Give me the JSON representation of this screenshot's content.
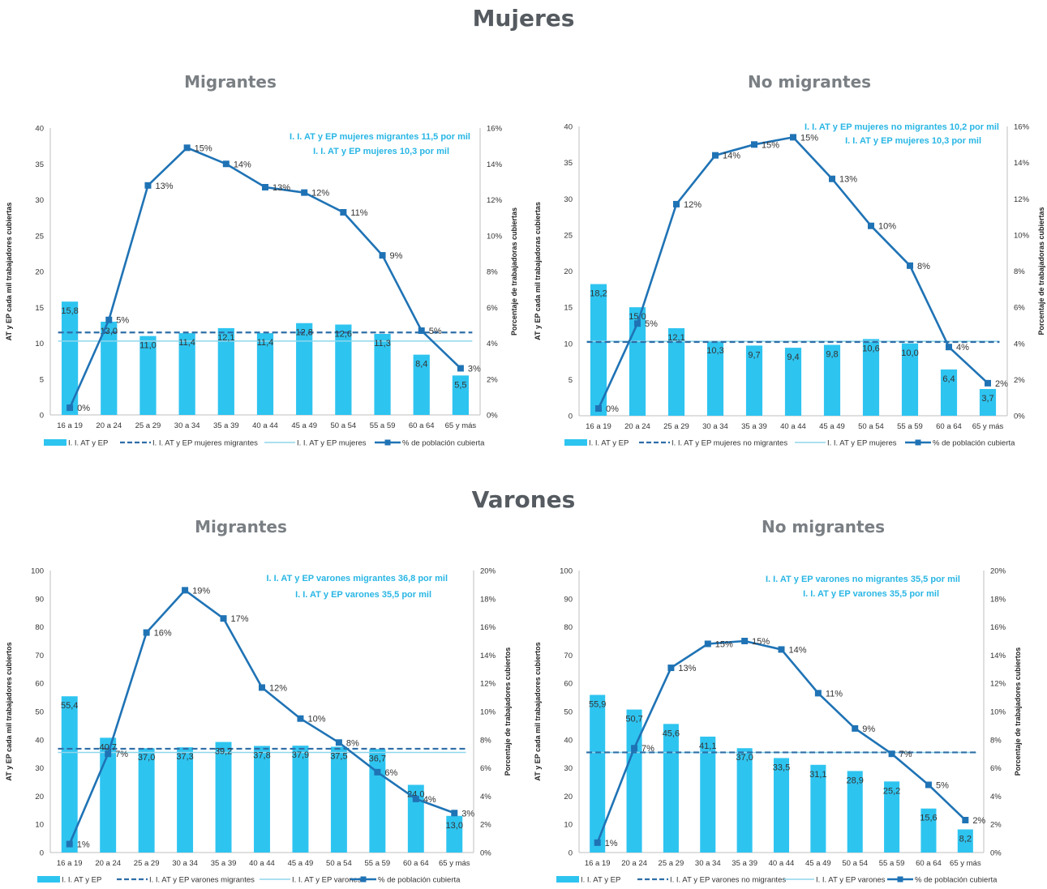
{
  "sections": [
    {
      "title": "Mujeres"
    },
    {
      "title": "Varones"
    }
  ],
  "colors": {
    "bars": "#2ec4f0",
    "pct_line": "#1f73b5",
    "ref_dashed": "#2e6ea7",
    "ref_light": "#8fd6ec",
    "annotation": "#29b6e4"
  },
  "chart_data": [
    {
      "type": "bar",
      "title": "Migrantes",
      "categories": [
        "16 a 19",
        "20 a 24",
        "25 a 29",
        "30 a 34",
        "35 a 39",
        "40 a 44",
        "45 a 49",
        "50 a 54",
        "55 a 59",
        "60 a 64",
        "65 y más"
      ],
      "ylim": [
        0,
        40
      ],
      "yticks": [
        "0",
        "5",
        "10",
        "15",
        "20",
        "25",
        "30",
        "35",
        "40"
      ],
      "y2lim": [
        0,
        16
      ],
      "y2ticks": [
        "0%",
        "2%",
        "4%",
        "6%",
        "8%",
        "10%",
        "12%",
        "14%",
        "16%"
      ],
      "ylabel": "AT y EP cada mil trabajadores cubiertas",
      "y2label": "Porcentaje de trabajadoras cubiertas",
      "series": [
        {
          "name": "I. I. AT y EP",
          "values": [
            15.8,
            13.0,
            11.0,
            11.4,
            12.1,
            11.4,
            12.8,
            12.6,
            11.3,
            8.4,
            5.5
          ],
          "labels": [
            "15,8",
            "13,0",
            "11,0",
            "11,4",
            "12,1",
            "11,4",
            "12,8",
            "12,6",
            "11,3",
            "8,4",
            "5,5"
          ]
        },
        {
          "name": "I. I. AT y EP mujeres migrantes",
          "value": 11.5
        },
        {
          "name": "I. I. AT y EP mujeres",
          "value": 10.3
        },
        {
          "name": "% de población cubierta",
          "values": [
            0.4,
            5.3,
            12.8,
            14.9,
            14.0,
            12.7,
            12.4,
            11.3,
            8.9,
            4.7,
            2.6
          ],
          "labels": [
            "0%",
            "5%",
            "13%",
            "15%",
            "14%",
            "13%",
            "12%",
            "11%",
            "9%",
            "5%",
            "3%"
          ]
        }
      ],
      "annotations": [
        "I. I. AT y EP mujeres migrantes  11,5 por mil",
        "I. I. AT y EP mujeres  10,3 por mil"
      ]
    },
    {
      "type": "bar",
      "title": "No migrantes",
      "categories": [
        "16 a 19",
        "20 a 24",
        "25 a 29",
        "30 a 34",
        "35 a 39",
        "40 a 44",
        "45 a 49",
        "50 a 54",
        "55 a 59",
        "60 a 64",
        "65 y más"
      ],
      "ylim": [
        0,
        40
      ],
      "yticks": [
        "0",
        "5",
        "10",
        "15",
        "20",
        "25",
        "30",
        "35",
        "40"
      ],
      "y2lim": [
        0,
        16
      ],
      "y2ticks": [
        "0%",
        "2%",
        "4%",
        "6%",
        "8%",
        "10%",
        "12%",
        "14%",
        "16%"
      ],
      "ylabel": "AT y EP cada mil trabajadoras cubiertas",
      "y2label": "Porcentaje de trabajadoras cubiertas",
      "series": [
        {
          "name": "I. I. AT y EP",
          "values": [
            18.2,
            15.0,
            12.1,
            10.3,
            9.7,
            9.4,
            9.8,
            10.6,
            10.0,
            6.4,
            3.7
          ],
          "labels": [
            "18,2",
            "15,0",
            "12,1",
            "10,3",
            "9,7",
            "9,4",
            "9,8",
            "10,6",
            "10,0",
            "6,4",
            "3,7"
          ]
        },
        {
          "name": "I. I. AT y EP mujeres no migrantes",
          "value": 10.2
        },
        {
          "name": "I. I. AT y EP mujeres",
          "value": 10.3
        },
        {
          "name": "% de población cubierta",
          "values": [
            0.4,
            5.1,
            11.7,
            14.4,
            15.0,
            15.4,
            13.1,
            10.5,
            8.3,
            3.8,
            1.8
          ],
          "labels": [
            "0%",
            "5%",
            "12%",
            "14%",
            "15%",
            "15%",
            "13%",
            "10%",
            "8%",
            "4%",
            "2%"
          ]
        }
      ],
      "annotations": [
        "I. I. AT y EP mujeres no migrantes  10,2 por mil",
        "I. I. AT y EP mujeres   10,3 por mil"
      ]
    },
    {
      "type": "bar",
      "title": "Migrantes",
      "categories": [
        "16 a 19",
        "20 a 24",
        "25 a 29",
        "30 a 34",
        "35 a 39",
        "40 a 44",
        "45 a 49",
        "50 a 54",
        "55 a 59",
        "60 a 64",
        "65 y más"
      ],
      "ylim": [
        0,
        100
      ],
      "yticks": [
        "0",
        "10",
        "20",
        "30",
        "40",
        "50",
        "60",
        "70",
        "80",
        "90",
        "100"
      ],
      "y2lim": [
        0,
        20
      ],
      "y2ticks": [
        "0%",
        "2%",
        "4%",
        "6%",
        "8%",
        "10%",
        "12%",
        "14%",
        "16%",
        "18%",
        "20%"
      ],
      "ylabel": "AT y EP cada mil trabajadores cubiertos",
      "y2label": "Porcentaje de trabajadores cubiertos",
      "series": [
        {
          "name": "I. I. AT y EP",
          "values": [
            55.4,
            40.7,
            37.0,
            37.3,
            39.2,
            37.8,
            37.9,
            37.5,
            36.7,
            24.0,
            13.0
          ],
          "labels": [
            "55,4",
            "40,7",
            "37,0",
            "37,3",
            "39,2",
            "37,8",
            "37,9",
            "37,5",
            "36,7",
            "24,0",
            "13,0"
          ]
        },
        {
          "name": "I. I. AT y EP varones migrantes",
          "value": 36.8
        },
        {
          "name": "I. I. AT y EP varones",
          "value": 35.5
        },
        {
          "name": "% de población cubierta",
          "values": [
            0.6,
            7.0,
            15.6,
            18.6,
            16.6,
            11.7,
            9.5,
            7.8,
            5.7,
            3.8,
            2.8
          ],
          "labels": [
            "1%",
            "7%",
            "16%",
            "19%",
            "17%",
            "12%",
            "10%",
            "8%",
            "6%",
            "4%",
            "3%"
          ]
        }
      ],
      "annotations": [
        "I. I. AT y EP varones migrantes  36,8 por mil",
        "I. I. AT y EP varones  35,5 por mil"
      ]
    },
    {
      "type": "bar",
      "title": "No migrantes",
      "categories": [
        "16 a 19",
        "20 a 24",
        "25 a 29",
        "30 a 34",
        "35 a 39",
        "40 a 44",
        "45 a 49",
        "50 a 54",
        "55 a 59",
        "60 a 64",
        "65 y más"
      ],
      "ylim": [
        0,
        100
      ],
      "yticks": [
        "0",
        "10",
        "20",
        "30",
        "40",
        "50",
        "60",
        "70",
        "80",
        "90",
        "100"
      ],
      "y2lim": [
        0,
        20
      ],
      "y2ticks": [
        "0%",
        "2%",
        "4%",
        "6%",
        "8%",
        "10%",
        "12%",
        "14%",
        "16%",
        "18%",
        "20%"
      ],
      "ylabel": "AT y EP cada mil trabajadores cubiertos",
      "y2label": "Porcentaje de trabajadores cubiertos",
      "series": [
        {
          "name": "I. I. AT y EP",
          "values": [
            55.9,
            50.7,
            45.6,
            41.1,
            37.0,
            33.5,
            31.1,
            28.9,
            25.2,
            15.6,
            8.2
          ],
          "labels": [
            "55,9",
            "50,7",
            "45,6",
            "41,1",
            "37,0",
            "33,5",
            "31,1",
            "28,9",
            "25,2",
            "15,6",
            "8,2"
          ]
        },
        {
          "name": "I. I. AT y EP varones no migrantes",
          "value": 35.5
        },
        {
          "name": "I. I. AT y EP varones",
          "value": 35.5
        },
        {
          "name": "% de población cubierta",
          "values": [
            0.7,
            7.4,
            13.1,
            14.8,
            15.0,
            14.4,
            11.3,
            8.8,
            7.0,
            4.8,
            2.3
          ],
          "labels": [
            "1%",
            "7%",
            "13%",
            "15%",
            "15%",
            "14%",
            "11%",
            "9%",
            "7%",
            "5%",
            "2%"
          ]
        }
      ],
      "annotations": [
        "I. I. AT y EP varones no migrantes  35,5 por mil",
        "I. I. AT y EP varones   35,5 por mil"
      ]
    }
  ]
}
